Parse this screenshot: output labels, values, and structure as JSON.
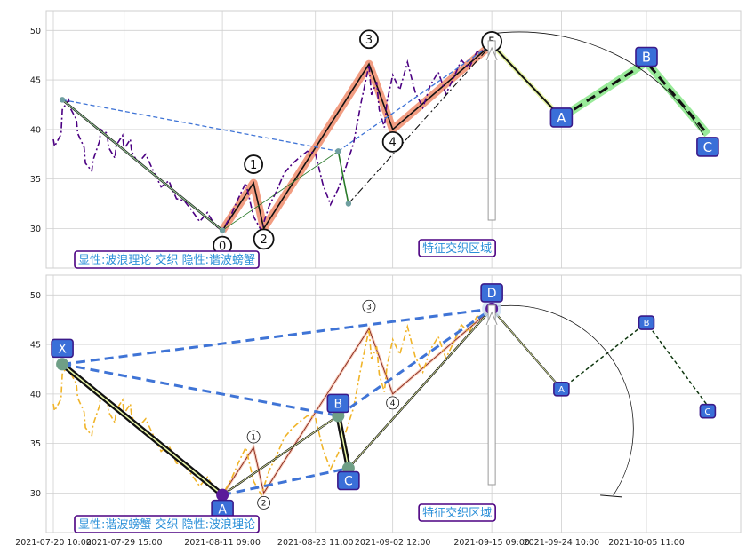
{
  "colors": {
    "price_top": "#4b0082",
    "price_bottom": "#f0b429",
    "box_fill": "#3a6fd8",
    "box_border": "#3a1a8a",
    "annotation_text": "#2a8fd8",
    "annotation_border": "#4b0082",
    "wave_highlight": "#f08c6c",
    "harmonic_dash": "#3f74d6",
    "projection_highlight": "#8ee88e",
    "grid": "#d0d0d0",
    "background": "#ffffff"
  },
  "chart_data": [
    {
      "type": "line",
      "panel": "top",
      "grid": true,
      "ylim": [
        26,
        52
      ],
      "yticks": [
        30,
        35,
        40,
        45,
        50
      ],
      "annotation": "显性:波浪理论 交织 隐性:谐波螃蟹",
      "overlap_label": "特征交织区域",
      "price_series": [
        [
          "2021-07-20 10:00",
          39.0
        ],
        [
          "2021-07-20 14:00",
          38.3
        ],
        [
          "2021-07-21 10:00",
          39.5
        ],
        [
          "2021-07-21 14:00",
          42.0
        ],
        [
          "2021-07-22 10:00",
          43.0
        ],
        [
          "2021-07-22 14:00",
          42.2
        ],
        [
          "2021-07-23 10:00",
          41.0
        ],
        [
          "2021-07-23 14:00",
          39.6
        ],
        [
          "2021-07-24 10:00",
          38.2
        ],
        [
          "2021-07-24 14:00",
          36.6
        ],
        [
          "2021-07-25 10:00",
          35.8
        ],
        [
          "2021-07-25 14:00",
          36.9
        ],
        [
          "2021-07-26 10:00",
          38.8
        ],
        [
          "2021-07-26 14:00",
          40.0
        ],
        [
          "2021-07-27 10:00",
          39.6
        ],
        [
          "2021-07-27 14:00",
          38.2
        ],
        [
          "2021-07-28 10:00",
          37.1
        ],
        [
          "2021-07-28 14:00",
          38.4
        ],
        [
          "2021-07-29 10:00",
          39.4
        ],
        [
          "2021-07-29 14:00",
          38.0
        ],
        [
          "2021-07-30 10:00",
          39.0
        ],
        [
          "2021-07-30 14:00",
          37.8
        ],
        [
          "2021-07-31 10:00",
          36.6
        ],
        [
          "2021-08-01 10:00",
          37.5
        ],
        [
          "2021-08-02 10:00",
          35.8
        ],
        [
          "2021-08-03 10:00",
          34.2
        ],
        [
          "2021-08-04 10:00",
          34.8
        ],
        [
          "2021-08-05 10:00",
          33.0
        ],
        [
          "2021-08-06 10:00",
          32.8
        ],
        [
          "2021-08-07 10:00",
          31.8
        ],
        [
          "2021-08-08 10:00",
          30.7
        ],
        [
          "2021-08-09 10:00",
          31.6
        ],
        [
          "2021-08-10 10:00",
          30.3
        ],
        [
          "2021-08-11 09:00",
          29.8
        ],
        [
          "2021-08-12 10:00",
          31.2
        ],
        [
          "2021-08-13 10:00",
          33.0
        ],
        [
          "2021-08-14 10:00",
          34.6
        ],
        [
          "2021-08-15 10:00",
          31.2
        ],
        [
          "2021-08-16 10:00",
          29.8
        ],
        [
          "2021-08-17 10:00",
          32.2
        ],
        [
          "2021-08-18 10:00",
          33.8
        ],
        [
          "2021-08-19 10:00",
          35.6
        ],
        [
          "2021-08-20 10:00",
          36.5
        ],
        [
          "2021-08-21 10:00",
          37.2
        ],
        [
          "2021-08-22 10:00",
          37.8
        ],
        [
          "2021-08-23 11:00",
          37.6
        ],
        [
          "2021-08-24 10:00",
          34.5
        ],
        [
          "2021-08-25 10:00",
          32.4
        ],
        [
          "2021-08-26 10:00",
          34.0
        ],
        [
          "2021-08-27 10:00",
          36.2
        ],
        [
          "2021-08-28 10:00",
          38.6
        ],
        [
          "2021-08-29 10:00",
          42.8
        ],
        [
          "2021-08-30 10:00",
          46.5
        ],
        [
          "2021-08-30 18:00",
          43.5
        ],
        [
          "2021-08-31 10:00",
          44.8
        ],
        [
          "2021-08-31 18:00",
          42.0
        ],
        [
          "2021-09-01 10:00",
          40.2
        ],
        [
          "2021-09-01 18:00",
          42.8
        ],
        [
          "2021-09-02 12:00",
          45.5
        ],
        [
          "2021-09-03 10:00",
          44.0
        ],
        [
          "2021-09-04 10:00",
          46.8
        ],
        [
          "2021-09-05 10:00",
          43.8
        ],
        [
          "2021-09-06 10:00",
          42.2
        ],
        [
          "2021-09-07 10:00",
          44.5
        ],
        [
          "2021-09-08 10:00",
          45.8
        ],
        [
          "2021-09-09 10:00",
          43.6
        ],
        [
          "2021-09-10 10:00",
          45.2
        ],
        [
          "2021-09-11 10:00",
          47.0
        ],
        [
          "2021-09-12 10:00",
          46.2
        ],
        [
          "2021-09-13 10:00",
          47.8
        ],
        [
          "2021-09-14 10:00",
          48.0
        ],
        [
          "2021-09-15 09:00",
          48.5
        ]
      ],
      "wave_points": [
        {
          "label": "0",
          "x": "2021-08-11 09:00",
          "y": 29.8
        },
        {
          "label": "1",
          "x": "2021-08-15 10:00",
          "y": 34.6
        },
        {
          "label": "2",
          "x": "2021-08-16 18:00",
          "y": 30.0
        },
        {
          "label": "3",
          "x": "2021-08-30 10:00",
          "y": 46.6
        },
        {
          "label": "4",
          "x": "2021-09-02 12:00",
          "y": 40.0
        },
        {
          "label": "5",
          "x": "2021-09-15 09:00",
          "y": 48.6
        }
      ],
      "projection_points": [
        {
          "label": "A",
          "x": "2021-09-24 10:00",
          "y": 41.2
        },
        {
          "label": "B",
          "x": "2021-10-05 11:00",
          "y": 46.8
        },
        {
          "label": "C",
          "x": "2021-10-13 10:00",
          "y": 39.5
        }
      ],
      "hidden_pattern": [
        {
          "x": "2021-07-21 14:00",
          "y": 43.0
        },
        {
          "x": "2021-08-11 09:00",
          "y": 29.8
        },
        {
          "x": "2021-08-26 10:00",
          "y": 37.8
        },
        {
          "x": "2021-08-27 18:00",
          "y": 32.5
        },
        {
          "x": "2021-09-15 09:00",
          "y": 48.6
        }
      ]
    },
    {
      "type": "line",
      "panel": "bottom",
      "grid": true,
      "ylim": [
        26,
        52
      ],
      "yticks": [
        30,
        35,
        40,
        45,
        50
      ],
      "annotation": "显性:谐波螃蟹 交织 隐性:波浪理论",
      "overlap_label": "特征交织区域",
      "xticks": [
        "2021-07-20 10:00",
        "2021-07-29 15:00",
        "2021-08-11 09:00",
        "2021-08-23 11:00",
        "2021-09-02 12:00",
        "2021-09-15 09:00",
        "2021-09-24 10:00",
        "2021-10-05 11:00"
      ],
      "harmonic_points": [
        {
          "label": "X",
          "x": "2021-07-21 14:00",
          "y": 43.0
        },
        {
          "label": "A",
          "x": "2021-08-11 09:00",
          "y": 29.8
        },
        {
          "label": "B",
          "x": "2021-08-26 10:00",
          "y": 37.8
        },
        {
          "label": "C",
          "x": "2021-08-27 18:00",
          "y": 32.5
        },
        {
          "label": "D",
          "x": "2021-09-15 09:00",
          "y": 48.6
        }
      ],
      "projection_points": [
        {
          "label": "A",
          "x": "2021-09-24 10:00",
          "y": 40.5
        },
        {
          "label": "B",
          "x": "2021-10-05 11:00",
          "y": 47.2
        },
        {
          "label": "C",
          "x": "2021-10-13 10:00",
          "y": 38.8
        }
      ],
      "hidden_wave": [
        {
          "label": "1",
          "x": "2021-08-15 10:00",
          "y": 34.6
        },
        {
          "label": "2",
          "x": "2021-08-16 18:00",
          "y": 30.0
        },
        {
          "label": "3",
          "x": "2021-08-30 10:00",
          "y": 46.6
        },
        {
          "label": "4",
          "x": "2021-09-02 12:00",
          "y": 40.0
        }
      ]
    }
  ]
}
